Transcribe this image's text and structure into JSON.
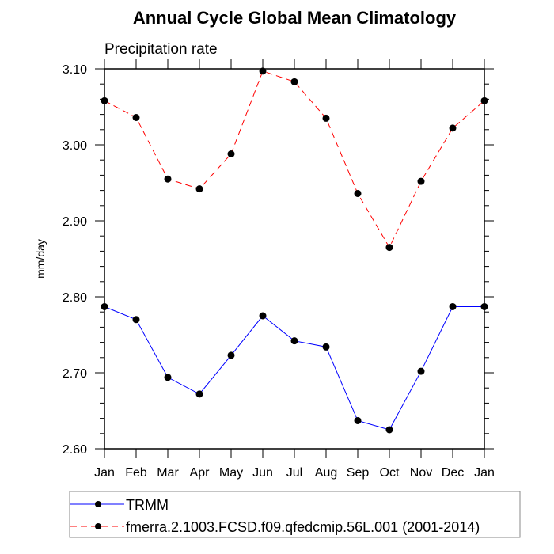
{
  "chart_data": {
    "type": "line",
    "title": "Annual Cycle Global Mean Climatology",
    "subtitle": "Precipitation rate",
    "xlabel": "",
    "ylabel": "mm/day",
    "categories": [
      "Jan",
      "Feb",
      "Mar",
      "Apr",
      "May",
      "Jun",
      "Jul",
      "Aug",
      "Sep",
      "Oct",
      "Nov",
      "Dec",
      "Jan"
    ],
    "ylim": [
      2.6,
      3.1
    ],
    "yticks": [
      2.6,
      2.7,
      2.8,
      2.9,
      3.0,
      3.1
    ],
    "ytick_labels": [
      "2.60",
      "2.70",
      "2.80",
      "2.90",
      "3.00",
      "3.10"
    ],
    "y_minor_step": 0.02,
    "grid": false,
    "legend_position": "bottom",
    "series": [
      {
        "name": "TRMM",
        "color": "#0000ff",
        "line_style": "solid",
        "marker": "filled-circle",
        "values": [
          2.787,
          2.77,
          2.694,
          2.672,
          2.723,
          2.775,
          2.742,
          2.734,
          2.637,
          2.625,
          2.702,
          2.787,
          2.787
        ]
      },
      {
        "name": "fmerra.2.1003.FCSD.f09.qfedcmip.56L.001 (2001-2014)",
        "color": "#ff0000",
        "line_style": "dashed",
        "marker": "filled-circle",
        "values": [
          3.058,
          3.036,
          2.955,
          2.942,
          2.988,
          3.097,
          3.083,
          3.035,
          2.936,
          2.865,
          2.952,
          3.022,
          3.058
        ]
      }
    ]
  }
}
